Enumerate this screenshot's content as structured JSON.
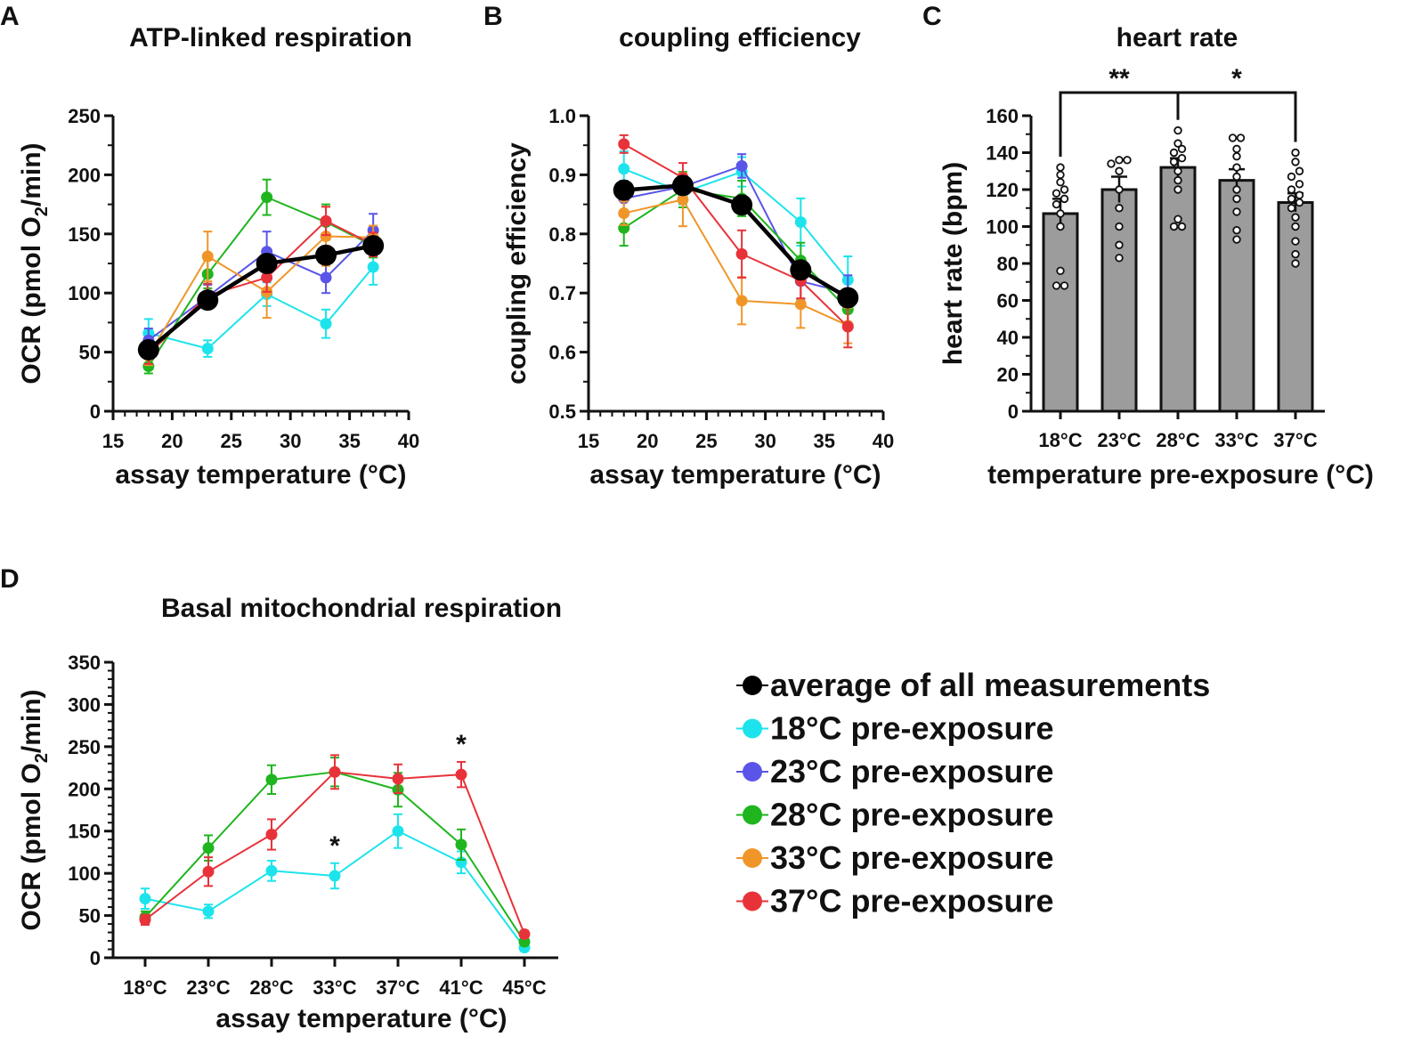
{
  "panels": {
    "A": {
      "label": "A",
      "title": "ATP-linked respiration"
    },
    "B": {
      "label": "B",
      "title": "coupling efficiency"
    },
    "C": {
      "label": "C",
      "title": "heart rate"
    },
    "D": {
      "label": "D",
      "title": "Basal mitochondrial respiration"
    }
  },
  "series_colors": {
    "average": "#000000",
    "pre18": "#1de4ec",
    "pre23": "#5a55e8",
    "pre28": "#1eb51e",
    "pre33": "#f09628",
    "pre37": "#e8323a"
  },
  "legend": [
    {
      "key": "average",
      "label": "average of all measurements"
    },
    {
      "key": "pre18",
      "label": "18°C pre-exposure"
    },
    {
      "key": "pre23",
      "label": "23°C pre-exposure"
    },
    {
      "key": "pre28",
      "label": "28°C pre-exposure"
    },
    {
      "key": "pre33",
      "label": "33°C pre-exposure"
    },
    {
      "key": "pre37",
      "label": "37°C pre-exposure"
    }
  ],
  "chart_data": [
    {
      "id": "A",
      "type": "line",
      "title": "ATP-linked respiration",
      "xlabel": "assay temperature (°C)",
      "ylabel_main": "OCR (pmol O",
      "ylabel_sub": "2",
      "ylabel_end": "/min)",
      "xlim": [
        15,
        40
      ],
      "ylim": [
        0,
        250
      ],
      "xticks": [
        15,
        20,
        25,
        30,
        35,
        40
      ],
      "yticks": [
        0,
        50,
        100,
        150,
        200,
        250
      ],
      "x": [
        18,
        23,
        28,
        33,
        37
      ],
      "series": [
        {
          "key": "pre18",
          "values": [
            66,
            53,
            99,
            74,
            122
          ],
          "err": [
            12,
            7,
            10,
            12,
            15
          ]
        },
        {
          "key": "pre23",
          "values": [
            60,
            97,
            135,
            113,
            153
          ],
          "err": [
            10,
            10,
            17,
            13,
            14
          ]
        },
        {
          "key": "pre28",
          "values": [
            38,
            116,
            181,
            160,
            140
          ],
          "err": [
            6,
            12,
            15,
            15,
            10
          ]
        },
        {
          "key": "pre33",
          "values": [
            47,
            131,
            101,
            148,
            147
          ],
          "err": [
            8,
            21,
            22,
            25,
            10
          ]
        },
        {
          "key": "pre37",
          "values": [
            48,
            98,
            113,
            161,
            141
          ],
          "err": [
            8,
            10,
            12,
            12,
            10
          ]
        },
        {
          "key": "average",
          "values": [
            52,
            94,
            125,
            132,
            140
          ],
          "err": [
            0,
            0,
            0,
            0,
            0
          ]
        }
      ]
    },
    {
      "id": "B",
      "type": "line",
      "title": "coupling efficiency",
      "xlabel": "assay temperature (°C)",
      "ylabel_main": "coupling efficiency",
      "ylabel_sub": "",
      "ylabel_end": "",
      "xlim": [
        15,
        40
      ],
      "ylim": [
        0.5,
        1.0
      ],
      "xticks": [
        15,
        20,
        25,
        30,
        35,
        40
      ],
      "yticks": [
        0.5,
        0.6,
        0.7,
        0.8,
        0.9,
        1.0
      ],
      "ytick_labels": [
        "0.5",
        "0.6",
        "0.7",
        "0.8",
        "0.9",
        "1.0"
      ],
      "x": [
        18,
        23,
        28,
        33,
        37
      ],
      "series": [
        {
          "key": "pre18",
          "values": [
            0.91,
            0.87,
            0.905,
            0.82,
            0.722
          ],
          "err": [
            0.03,
            0.02,
            0.025,
            0.04,
            0.04
          ]
        },
        {
          "key": "pre23",
          "values": [
            0.86,
            0.88,
            0.915,
            0.72,
            0.7
          ],
          "err": [
            0.03,
            0.02,
            0.02,
            0.03,
            0.03
          ]
        },
        {
          "key": "pre28",
          "values": [
            0.81,
            0.875,
            0.86,
            0.755,
            0.672
          ],
          "err": [
            0.03,
            0.03,
            0.03,
            0.03,
            0.03
          ]
        },
        {
          "key": "pre33",
          "values": [
            0.835,
            0.858,
            0.687,
            0.681,
            0.645
          ],
          "err": [
            0.02,
            0.045,
            0.04,
            0.04,
            0.03
          ]
        },
        {
          "key": "pre37",
          "values": [
            0.952,
            0.895,
            0.766,
            0.721,
            0.643
          ],
          "err": [
            0.015,
            0.025,
            0.04,
            0.03,
            0.035
          ]
        },
        {
          "key": "average",
          "values": [
            0.874,
            0.882,
            0.849,
            0.739,
            0.692
          ],
          "err": [
            0,
            0,
            0,
            0,
            0
          ]
        }
      ]
    },
    {
      "id": "C",
      "type": "bar",
      "title": "heart rate",
      "xlabel": "temperature pre-exposure (°C)",
      "ylabel": "heart rate (bpm)",
      "ylim": [
        0,
        160
      ],
      "yticks": [
        0,
        20,
        40,
        60,
        80,
        100,
        120,
        140,
        160
      ],
      "categories": [
        "18°C",
        "23°C",
        "28°C",
        "33°C",
        "37°C"
      ],
      "values": [
        107,
        120,
        132,
        125,
        113
      ],
      "err": [
        8,
        7,
        5,
        6,
        5
      ],
      "points": [
        [
          68,
          68,
          76,
          100,
          107,
          112,
          115,
          118,
          120,
          124,
          128,
          132
        ],
        [
          83,
          90,
          100,
          110,
          120,
          130,
          134,
          136,
          136
        ],
        [
          100,
          100,
          104,
          120,
          125,
          130,
          135,
          137,
          140,
          142,
          145,
          152
        ],
        [
          93,
          98,
          108,
          115,
          120,
          127,
          132,
          138,
          142,
          148,
          148
        ],
        [
          80,
          85,
          92,
          100,
          105,
          110,
          113,
          115,
          117,
          120,
          123,
          127,
          130,
          135,
          140
        ]
      ],
      "significance": [
        {
          "from": 0,
          "to": 2,
          "label": "**"
        },
        {
          "from": 2,
          "to": 4,
          "label": "*"
        }
      ]
    },
    {
      "id": "D",
      "type": "line",
      "title": "Basal mitochondrial respiration",
      "xlabel": "assay temperature (°C)",
      "ylabel_main": "OCR (pmol O",
      "ylabel_sub": "2",
      "ylabel_end": "/min)",
      "ylim": [
        0,
        350
      ],
      "yticks": [
        0,
        50,
        100,
        150,
        200,
        250,
        300,
        350
      ],
      "categories": [
        "18°C",
        "23°C",
        "28°C",
        "33°C",
        "37°C",
        "41°C",
        "45°C"
      ],
      "series": [
        {
          "key": "pre18",
          "values": [
            70,
            55,
            103,
            97,
            150,
            113,
            12
          ],
          "err": [
            12,
            8,
            12,
            15,
            20,
            13,
            4
          ]
        },
        {
          "key": "pre28",
          "values": [
            48,
            130,
            211,
            220,
            199,
            134,
            19
          ],
          "err": [
            7,
            15,
            17,
            17,
            20,
            18,
            4
          ]
        },
        {
          "key": "pre37",
          "values": [
            45,
            102,
            146,
            220,
            212,
            217,
            28
          ],
          "err": [
            6,
            17,
            18,
            20,
            17,
            15,
            4
          ]
        }
      ],
      "annotations": [
        {
          "category": "33°C",
          "key": "pre18",
          "label": "*"
        },
        {
          "category": "41°C",
          "key": "pre37",
          "label": "*"
        }
      ]
    }
  ]
}
